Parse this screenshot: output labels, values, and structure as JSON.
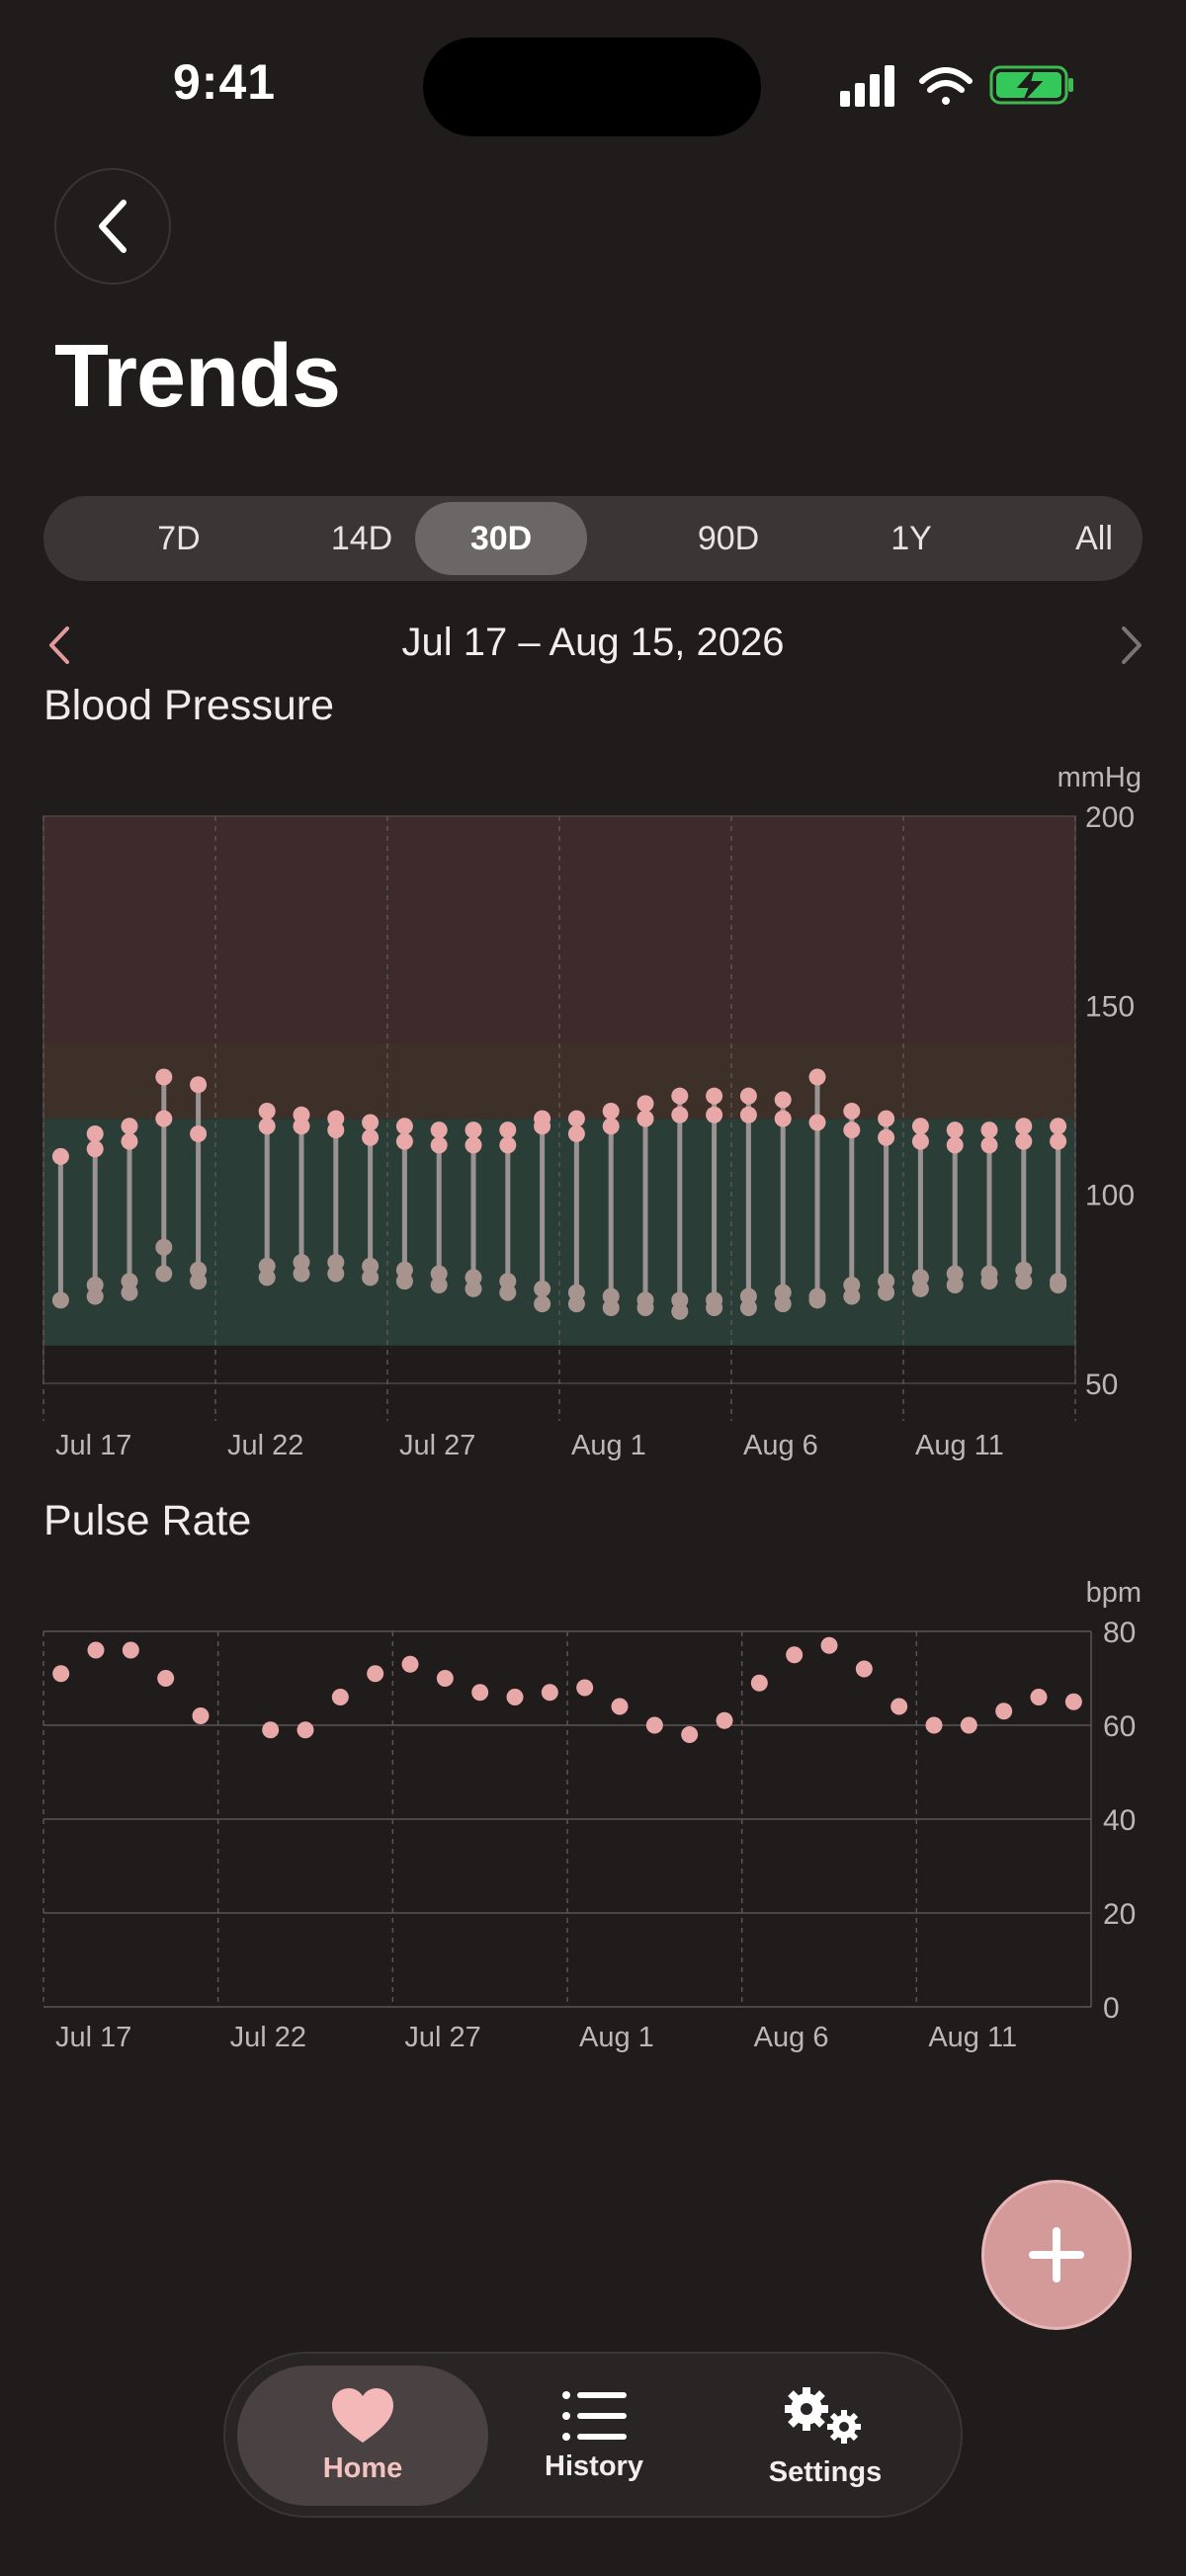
{
  "status": {
    "time": "9:41"
  },
  "page": {
    "title": "Trends"
  },
  "range_tabs": [
    "7D",
    "14D",
    "30D",
    "90D",
    "1Y",
    "All"
  ],
  "range_selected": "30D",
  "date_range": "Jul 17 – Aug 15, 2026",
  "colors": {
    "background": "#201c1c",
    "accent": "#e8a8a8",
    "normal_zone": "#2a3d36",
    "elevated_zone": "#3d3029",
    "high_zone": "#3f2a2b",
    "stem": "#9b9393",
    "diastolic_dot": "#a8948f"
  },
  "bp_section": {
    "title": "Blood Pressure",
    "unit": "mmHg"
  },
  "pulse_section": {
    "title": "Pulse Rate",
    "unit": "bpm"
  },
  "chart_data": [
    {
      "type": "range",
      "title": "Blood Pressure",
      "ylabel": "mmHg",
      "ylim": [
        50,
        200
      ],
      "yticks": [
        50,
        100,
        150,
        200
      ],
      "x_tick_labels": [
        "Jul 17",
        "Jul 22",
        "Jul 27",
        "Aug 1",
        "Aug 6",
        "Aug 11"
      ],
      "x_day_range": [
        "Jul 17",
        "Aug 15"
      ],
      "zones": [
        {
          "name": "normal",
          "from": 60,
          "to": 120
        },
        {
          "name": "elevated",
          "from": 120,
          "to": 140
        },
        {
          "name": "high",
          "from": 140,
          "to": 200
        }
      ],
      "series": [
        {
          "day": "Jul 17",
          "readings": [
            [
              110,
              72
            ]
          ]
        },
        {
          "day": "Jul 18",
          "readings": [
            [
              116,
              76
            ],
            [
              112,
              73
            ]
          ]
        },
        {
          "day": "Jul 19",
          "readings": [
            [
              118,
              77
            ],
            [
              114,
              74
            ]
          ]
        },
        {
          "day": "Jul 20",
          "readings": [
            [
              131,
              86
            ],
            [
              120,
              79
            ]
          ]
        },
        {
          "day": "Jul 21",
          "readings": [
            [
              129,
              80
            ],
            [
              116,
              77
            ]
          ]
        },
        {
          "day": "Jul 22",
          "readings": []
        },
        {
          "day": "Jul 23",
          "readings": [
            [
              122,
              81
            ],
            [
              118,
              78
            ]
          ]
        },
        {
          "day": "Jul 24",
          "readings": [
            [
              121,
              82
            ],
            [
              118,
              79
            ]
          ]
        },
        {
          "day": "Jul 25",
          "readings": [
            [
              120,
              82
            ],
            [
              117,
              79
            ]
          ]
        },
        {
          "day": "Jul 26",
          "readings": [
            [
              119,
              81
            ],
            [
              115,
              78
            ]
          ]
        },
        {
          "day": "Jul 27",
          "readings": [
            [
              118,
              80
            ],
            [
              114,
              77
            ]
          ]
        },
        {
          "day": "Jul 28",
          "readings": [
            [
              117,
              79
            ],
            [
              113,
              76
            ]
          ]
        },
        {
          "day": "Jul 29",
          "readings": [
            [
              117,
              78
            ],
            [
              113,
              75
            ]
          ]
        },
        {
          "day": "Jul 30",
          "readings": [
            [
              117,
              77
            ],
            [
              113,
              74
            ]
          ]
        },
        {
          "day": "Jul 31",
          "readings": [
            [
              120,
              75
            ],
            [
              118,
              71
            ]
          ]
        },
        {
          "day": "Aug 1",
          "readings": [
            [
              120,
              74
            ],
            [
              116,
              71
            ]
          ]
        },
        {
          "day": "Aug 2",
          "readings": [
            [
              122,
              73
            ],
            [
              118,
              70
            ]
          ]
        },
        {
          "day": "Aug 3",
          "readings": [
            [
              124,
              72
            ],
            [
              120,
              70
            ]
          ]
        },
        {
          "day": "Aug 4",
          "readings": [
            [
              126,
              72
            ],
            [
              121,
              69
            ]
          ]
        },
        {
          "day": "Aug 5",
          "readings": [
            [
              126,
              72
            ],
            [
              121,
              70
            ]
          ]
        },
        {
          "day": "Aug 6",
          "readings": [
            [
              126,
              73
            ],
            [
              121,
              70
            ]
          ]
        },
        {
          "day": "Aug 7",
          "readings": [
            [
              125,
              74
            ],
            [
              120,
              71
            ]
          ]
        },
        {
          "day": "Aug 8",
          "readings": [
            [
              131,
              73
            ],
            [
              119,
              72
            ]
          ]
        },
        {
          "day": "Aug 9",
          "readings": [
            [
              122,
              76
            ],
            [
              117,
              73
            ]
          ]
        },
        {
          "day": "Aug 10",
          "readings": [
            [
              120,
              77
            ],
            [
              115,
              74
            ]
          ]
        },
        {
          "day": "Aug 11",
          "readings": [
            [
              118,
              78
            ],
            [
              114,
              75
            ]
          ]
        },
        {
          "day": "Aug 12",
          "readings": [
            [
              117,
              79
            ],
            [
              113,
              76
            ]
          ]
        },
        {
          "day": "Aug 13",
          "readings": [
            [
              117,
              79
            ],
            [
              113,
              77
            ]
          ]
        },
        {
          "day": "Aug 14",
          "readings": [
            [
              118,
              80
            ],
            [
              114,
              77
            ]
          ]
        },
        {
          "day": "Aug 15",
          "readings": [
            [
              118,
              77
            ],
            [
              114,
              76
            ]
          ]
        }
      ]
    },
    {
      "type": "scatter",
      "title": "Pulse Rate",
      "ylabel": "bpm",
      "ylim": [
        0,
        80
      ],
      "yticks": [
        0,
        20,
        40,
        60,
        80
      ],
      "grid": true,
      "x_tick_labels": [
        "Jul 17",
        "Jul 22",
        "Jul 27",
        "Aug 1",
        "Aug 6",
        "Aug 11"
      ],
      "x_day_range": [
        "Jul 17",
        "Aug 15"
      ],
      "values": [
        71,
        76,
        76,
        70,
        62,
        null,
        59,
        59,
        66,
        71,
        73,
        70,
        67,
        66,
        67,
        68,
        64,
        60,
        58,
        61,
        69,
        75,
        77,
        72,
        64,
        60,
        60,
        63,
        66,
        65
      ]
    }
  ],
  "fab": {
    "icon": "plus-icon"
  },
  "tabbar": {
    "items": [
      {
        "label": "Home",
        "icon": "heart-icon",
        "active": true
      },
      {
        "label": "History",
        "icon": "list-icon",
        "active": false
      },
      {
        "label": "Settings",
        "icon": "gears-icon",
        "active": false
      }
    ]
  }
}
